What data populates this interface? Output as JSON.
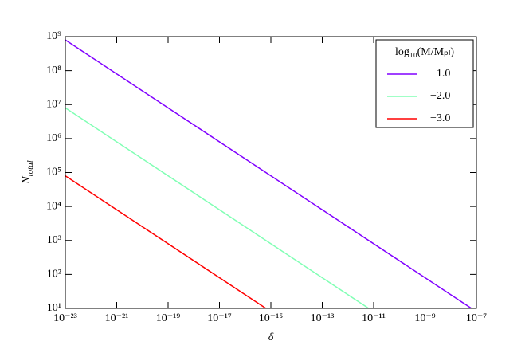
{
  "chart_data": {
    "type": "line",
    "xlabel": "δ",
    "ylabel": {
      "base": "N",
      "sub": "total"
    },
    "log_x": true,
    "log_y": true,
    "xlim": [
      1e-23,
      1e-07
    ],
    "ylim": [
      10,
      1000000000.0
    ],
    "xticks": [
      {
        "value": 1e-23,
        "label": "10⁻²³"
      },
      {
        "value": 1e-21,
        "label": "10⁻²¹"
      },
      {
        "value": 1e-19,
        "label": "10⁻¹⁹"
      },
      {
        "value": 1e-17,
        "label": "10⁻¹⁷"
      },
      {
        "value": 1e-15,
        "label": "10⁻¹⁵"
      },
      {
        "value": 1e-13,
        "label": "10⁻¹³"
      },
      {
        "value": 1e-11,
        "label": "10⁻¹¹"
      },
      {
        "value": 1e-09,
        "label": "10⁻⁹"
      },
      {
        "value": 1e-07,
        "label": "10⁻⁷"
      }
    ],
    "yticks": [
      {
        "value": 10,
        "label": "10¹"
      },
      {
        "value": 100,
        "label": "10²"
      },
      {
        "value": 1000,
        "label": "10³"
      },
      {
        "value": 10000,
        "label": "10⁴"
      },
      {
        "value": 100000,
        "label": "10⁵"
      },
      {
        "value": 1000000,
        "label": "10⁶"
      },
      {
        "value": 10000000,
        "label": "10⁷"
      },
      {
        "value": 100000000,
        "label": "10⁸"
      },
      {
        "value": 1000000000,
        "label": "10⁹"
      }
    ],
    "legend_title": "log₁₀(M/Mₚₗ)",
    "legend_position": "upper right",
    "series": [
      {
        "name": "−1.0",
        "color": "#8000ff",
        "x": [
          1e-23,
          6.4e-08
        ],
        "values": [
          800000000.0,
          10
        ]
      },
      {
        "name": "−2.0",
        "color": "#80ffb4",
        "x": [
          1e-23,
          6.4e-12
        ],
        "values": [
          8000000.0,
          10
        ]
      },
      {
        "name": "−3.0",
        "color": "#ff0000",
        "x": [
          1e-23,
          6.4e-16
        ],
        "values": [
          80000.0,
          10
        ]
      }
    ]
  }
}
